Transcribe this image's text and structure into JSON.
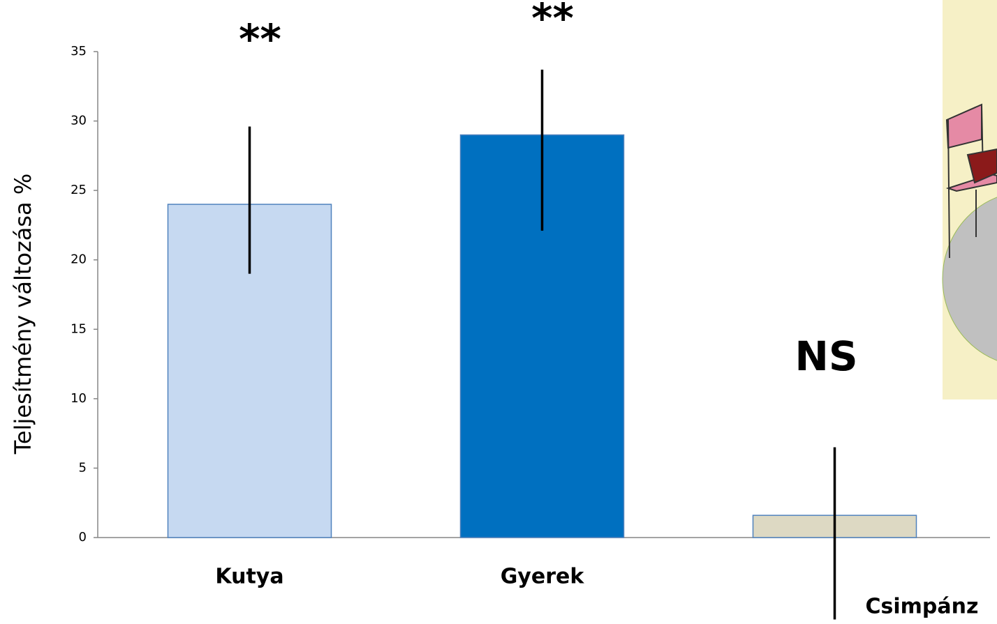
{
  "chart_data": {
    "type": "bar",
    "y_label": "Teljesítmény változása %",
    "categories": [
      "Kutya",
      "Gyerek",
      "Csimpánz"
    ],
    "values": [
      24,
      29,
      1.6
    ],
    "error_bars": [
      [
        19,
        29.6
      ],
      [
        22.1,
        33.7
      ],
      [
        -5.9,
        6.5
      ]
    ],
    "colors": [
      "#c6d9f1",
      "#0070c0",
      "#ddd9c3"
    ],
    "edge_color": "#4f81bd",
    "annotations": [
      "**",
      "**",
      "NS"
    ],
    "ylim": [
      0,
      35
    ],
    "yticks": [
      0,
      5,
      10,
      15,
      20,
      25,
      30,
      35
    ]
  }
}
